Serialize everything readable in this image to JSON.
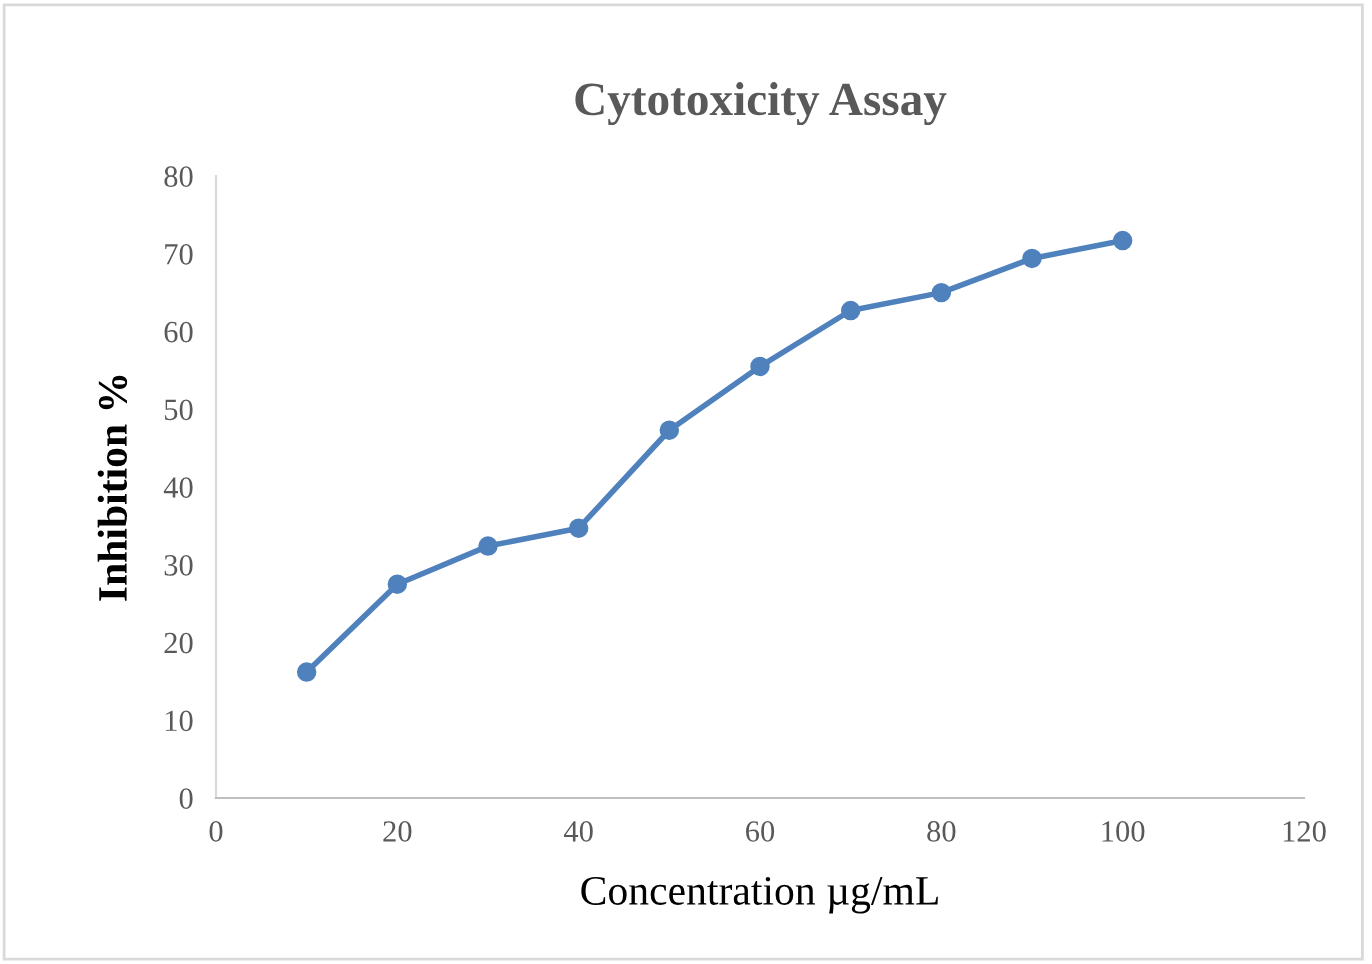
{
  "chart_data": {
    "type": "line",
    "title": "Cytotoxicity Assay",
    "xlabel": "Concentration µg/mL",
    "ylabel": "Inhibition %",
    "x": [
      10,
      20,
      30,
      40,
      50,
      60,
      70,
      80,
      90,
      100
    ],
    "series": [
      {
        "color": "#4f81bd",
        "values": [
          16.2,
          27.5,
          32.4,
          34.7,
          47.3,
          55.5,
          62.7,
          65.0,
          69.4,
          71.7
        ]
      }
    ],
    "xlim": [
      0,
      120
    ],
    "xticks": [
      0,
      20,
      40,
      60,
      80,
      100,
      120
    ],
    "ylim": [
      0,
      80
    ],
    "yticks": [
      0,
      10,
      20,
      30,
      40,
      50,
      60,
      70,
      80
    ],
    "grid": false,
    "marker": "circle",
    "line_style": "solid"
  }
}
